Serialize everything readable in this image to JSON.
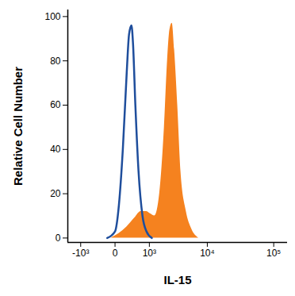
{
  "chart_data": {
    "type": "histogram",
    "x_label": "IL-15",
    "y_label": "Relative Cell Number",
    "log": "x",
    "xlim": [
      -1800,
      160000
    ],
    "xticks": [
      {
        "value": -1000,
        "label": "-10³"
      },
      0,
      {
        "value": 1000,
        "label": "10³"
      },
      {
        "value": 10000,
        "label": "10⁴"
      },
      {
        "value": 100000,
        "label": "10⁵"
      }
    ],
    "ylim": [
      -2,
      103
    ],
    "yticks": [
      0,
      20,
      40,
      60,
      80,
      100
    ],
    "grid": false,
    "series": [
      {
        "type": "area",
        "color": "#f5821f",
        "x": [
          -64,
          64,
          221,
          426,
          637,
          862,
          1044,
          1289,
          1607,
          1965,
          2237,
          2461,
          2703,
          2967,
          3350,
          3791,
          4646,
          5690,
          7353
        ],
        "values": [
          0,
          2,
          5,
          9,
          12,
          12,
          11,
          10,
          20,
          50,
          80,
          94,
          97,
          85,
          60,
          30,
          12,
          4,
          0
        ]
      },
      {
        "type": "line",
        "color": "#1f4e9c",
        "x": [
          -137,
          0,
          64,
          137,
          221,
          276,
          338,
          380,
          450,
          553,
          697,
          862,
          1128
        ],
        "values": [
          0,
          3,
          15,
          40,
          75,
          92,
          96,
          88,
          60,
          30,
          10,
          3,
          0
        ]
      }
    ]
  }
}
